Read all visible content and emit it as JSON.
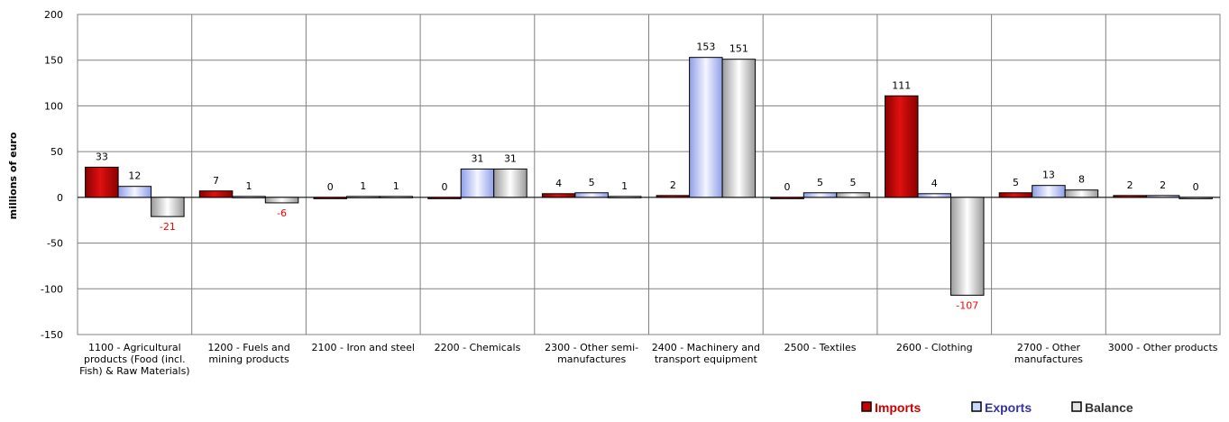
{
  "chart_data": {
    "type": "bar",
    "ylabel": "millions of euro",
    "ylim": [
      -150,
      200
    ],
    "yticks": [
      200,
      150,
      100,
      50,
      0,
      -50,
      -100,
      -150
    ],
    "grid": true,
    "legend_position": "bottom-right",
    "categories": [
      [
        "1100 - Agricultural",
        "products (Food (incl.",
        "Fish) & Raw Materials)"
      ],
      [
        "1200 - Fuels and",
        "mining products"
      ],
      [
        "2100 - Iron and steel"
      ],
      [
        "2200 - Chemicals"
      ],
      [
        "2300 - Other semi-",
        "manufactures"
      ],
      [
        "2400 - Machinery and",
        "transport equipment"
      ],
      [
        "2500 - Textiles"
      ],
      [
        "2600 - Clothing"
      ],
      [
        "2700 - Other",
        "manufactures"
      ],
      [
        "3000 - Other products"
      ]
    ],
    "series": [
      {
        "name": "Imports",
        "values": [
          33,
          7,
          0,
          0,
          4,
          2,
          0,
          111,
          5,
          2
        ],
        "color": "#cc0000",
        "legend_color": "#cc0000"
      },
      {
        "name": "Exports",
        "values": [
          12,
          1,
          1,
          31,
          5,
          153,
          5,
          4,
          13,
          2
        ],
        "color": "#c8d8ff",
        "legend_color": "#3333aa"
      },
      {
        "name": "Balance",
        "values": [
          -21,
          -6,
          1,
          31,
          1,
          151,
          5,
          -107,
          8,
          0
        ],
        "color": "#e4e4e4",
        "legend_color": "#333333"
      }
    ],
    "label_colors": {
      "positive": "#000000",
      "negative": "#ff0000"
    }
  }
}
